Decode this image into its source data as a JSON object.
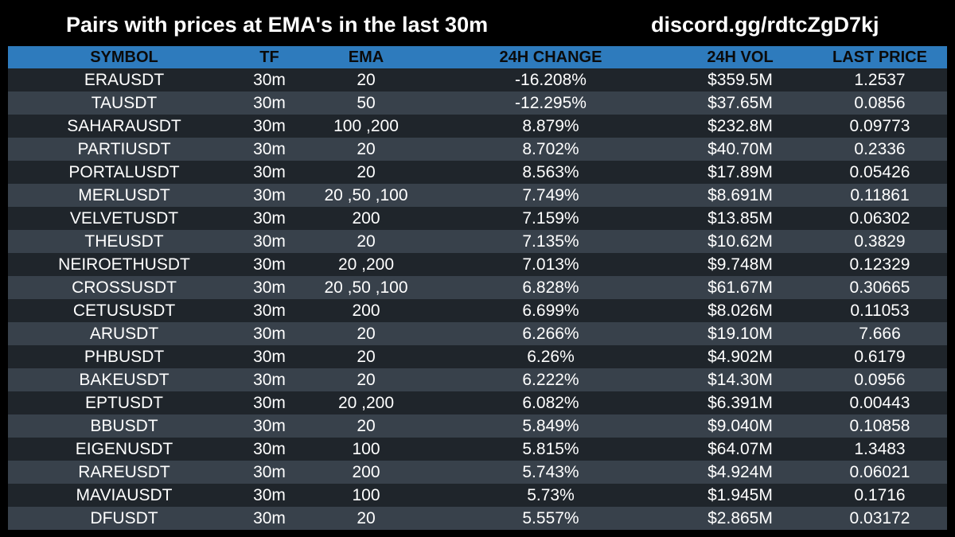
{
  "header": {
    "title": "Pairs with prices at EMA's in the last 30m",
    "discord": "discord.gg/rdtcZgD7kj"
  },
  "table": {
    "columns": [
      "SYMBOL",
      "TF",
      "EMA",
      "24H CHANGE",
      "24H VOL",
      "LAST PRICE"
    ],
    "rows": [
      [
        "ERAUSDT",
        "30m",
        "20",
        "-16.208%",
        "$359.5M",
        "1.2537"
      ],
      [
        "TAUSDT",
        "30m",
        "50",
        "-12.295%",
        "$37.65M",
        "0.0856"
      ],
      [
        "SAHARAUSDT",
        "30m",
        "100 ,200",
        "8.879%",
        "$232.8M",
        "0.09773"
      ],
      [
        "PARTIUSDT",
        "30m",
        "20",
        "8.702%",
        "$40.70M",
        "0.2336"
      ],
      [
        "PORTALUSDT",
        "30m",
        "20",
        "8.563%",
        "$17.89M",
        "0.05426"
      ],
      [
        "MERLUSDT",
        "30m",
        "20 ,50 ,100",
        "7.749%",
        "$8.691M",
        "0.11861"
      ],
      [
        "VELVETUSDT",
        "30m",
        "200",
        "7.159%",
        "$13.85M",
        "0.06302"
      ],
      [
        "THEUSDT",
        "30m",
        "20",
        "7.135%",
        "$10.62M",
        "0.3829"
      ],
      [
        "NEIROETHUSDT",
        "30m",
        "20 ,200",
        "7.013%",
        "$9.748M",
        "0.12329"
      ],
      [
        "CROSSUSDT",
        "30m",
        "20 ,50 ,100",
        "6.828%",
        "$61.67M",
        "0.30665"
      ],
      [
        "CETUSUSDT",
        "30m",
        "200",
        "6.699%",
        "$8.026M",
        "0.11053"
      ],
      [
        "ARUSDT",
        "30m",
        "20",
        "6.266%",
        "$19.10M",
        "7.666"
      ],
      [
        "PHBUSDT",
        "30m",
        "20",
        "6.26%",
        "$4.902M",
        "0.6179"
      ],
      [
        "BAKEUSDT",
        "30m",
        "20",
        "6.222%",
        "$14.30M",
        "0.0956"
      ],
      [
        "EPTUSDT",
        "30m",
        "20 ,200",
        "6.082%",
        "$6.391M",
        "0.00443"
      ],
      [
        "BBUSDT",
        "30m",
        "20",
        "5.849%",
        "$9.040M",
        "0.10858"
      ],
      [
        "EIGENUSDT",
        "30m",
        "100",
        "5.815%",
        "$64.07M",
        "1.3483"
      ],
      [
        "RAREUSDT",
        "30m",
        "200",
        "5.743%",
        "$4.924M",
        "0.06021"
      ],
      [
        "MAVIAUSDT",
        "30m",
        "100",
        "5.73%",
        "$1.945M",
        "0.1716"
      ],
      [
        "DFUSDT",
        "30m",
        "20",
        "5.557%",
        "$2.865M",
        "0.03172"
      ]
    ]
  },
  "colors": {
    "background": "#000000",
    "header_bg": "#2e7bbd",
    "row_dark": "#1f252b",
    "row_light": "#38414b",
    "text": "#ffffff"
  }
}
